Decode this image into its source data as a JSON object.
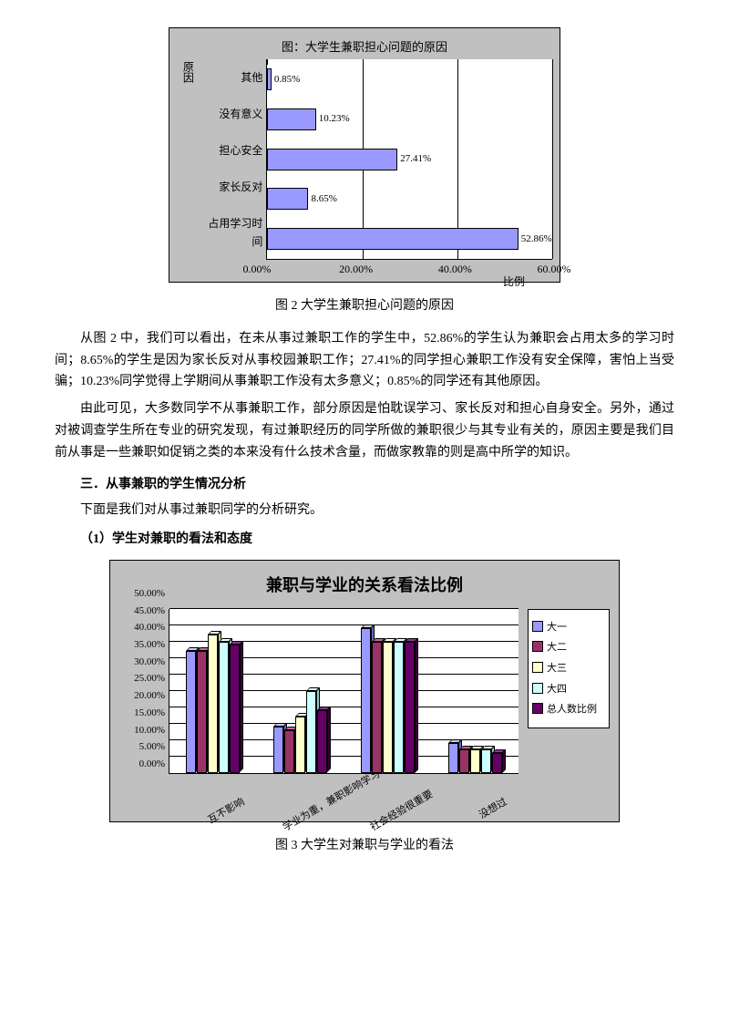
{
  "chart1": {
    "type": "bar-horizontal",
    "title": "图：大学生兼职担心问题的原因",
    "y_axis_title": "原因",
    "x_axis_title": "比例",
    "categories": [
      "其他",
      "没有意义",
      "担心安全",
      "家长反对",
      "占用学习时间"
    ],
    "values": [
      0.85,
      10.23,
      27.41,
      8.65,
      52.86
    ],
    "value_labels": [
      "0.85%",
      "10.23%",
      "27.41%",
      "8.65%",
      "52.86%"
    ],
    "x_ticks": [
      0,
      20,
      40,
      60
    ],
    "x_tick_labels": [
      "0.00%",
      "20.00%",
      "40.00%",
      "60.00%"
    ],
    "x_max": 60,
    "bar_color": "#9999ff",
    "background_color": "#c0c0c0",
    "plot_background": "#ffffff",
    "border_color": "#000000"
  },
  "caption1": "图 2 大学生兼职担心问题的原因",
  "para1": "从图 2 中，我们可以看出，在未从事过兼职工作的学生中，52.86%的学生认为兼职会占用太多的学习时间；8.65%的学生是因为家长反对从事校园兼职工作；27.41%的同学担心兼职工作没有安全保障，害怕上当受骗；10.23%同学觉得上学期间从事兼职工作没有太多意义；0.85%的同学还有其他原因。",
  "para2": "由此可见，大多数同学不从事兼职工作，部分原因是怕耽误学习、家长反对和担心自身安全。另外，通过对被调查学生所在专业的研究发现，有过兼职经历的同学所做的兼职很少与其专业有关的，原因主要是我们目前从事是一些兼职如促销之类的本来没有什么技术含量，而做家教靠的则是高中所学的知识。",
  "heading3": "三．从事兼职的学生情况分析",
  "intro3": "下面是我们对从事过兼职同学的分析研究。",
  "subheading1": "（1）学生对兼职的看法和态度",
  "chart2": {
    "type": "bar-grouped-3d",
    "title": "兼职与学业的关系看法比例",
    "categories": [
      "互不影响",
      "学业为重，兼职影响学习",
      "社会经验很重要",
      "没想过"
    ],
    "series": [
      {
        "name": "大一",
        "color": "#9999ff",
        "top_color": "#ccccff",
        "side_color": "#6666cc",
        "values": [
          37,
          14,
          44,
          9
        ]
      },
      {
        "name": "大二",
        "color": "#993366",
        "top_color": "#cc6699",
        "side_color": "#662244",
        "values": [
          37,
          13,
          40,
          7
        ]
      },
      {
        "name": "大三",
        "color": "#ffffcc",
        "top_color": "#ffffee",
        "side_color": "#cccc99",
        "values": [
          42,
          17,
          40,
          7
        ]
      },
      {
        "name": "大四",
        "color": "#ccffff",
        "top_color": "#eeffff",
        "side_color": "#99cccc",
        "values": [
          40,
          25,
          40,
          7
        ]
      },
      {
        "name": "总人数比例",
        "color": "#660066",
        "top_color": "#993399",
        "side_color": "#330033",
        "values": [
          39,
          19,
          40,
          6
        ]
      }
    ],
    "y_ticks": [
      0,
      5,
      10,
      15,
      20,
      25,
      30,
      35,
      40,
      45,
      50
    ],
    "y_tick_labels": [
      "0.00%",
      "5.00%",
      "10.00%",
      "15.00%",
      "20.00%",
      "25.00%",
      "30.00%",
      "35.00%",
      "40.00%",
      "45.00%",
      "50.00%"
    ],
    "y_max": 50,
    "background_color": "#c0c0c0",
    "plot_background": "#ffffff"
  },
  "caption2": "图 3   大学生对兼职与学业的看法"
}
